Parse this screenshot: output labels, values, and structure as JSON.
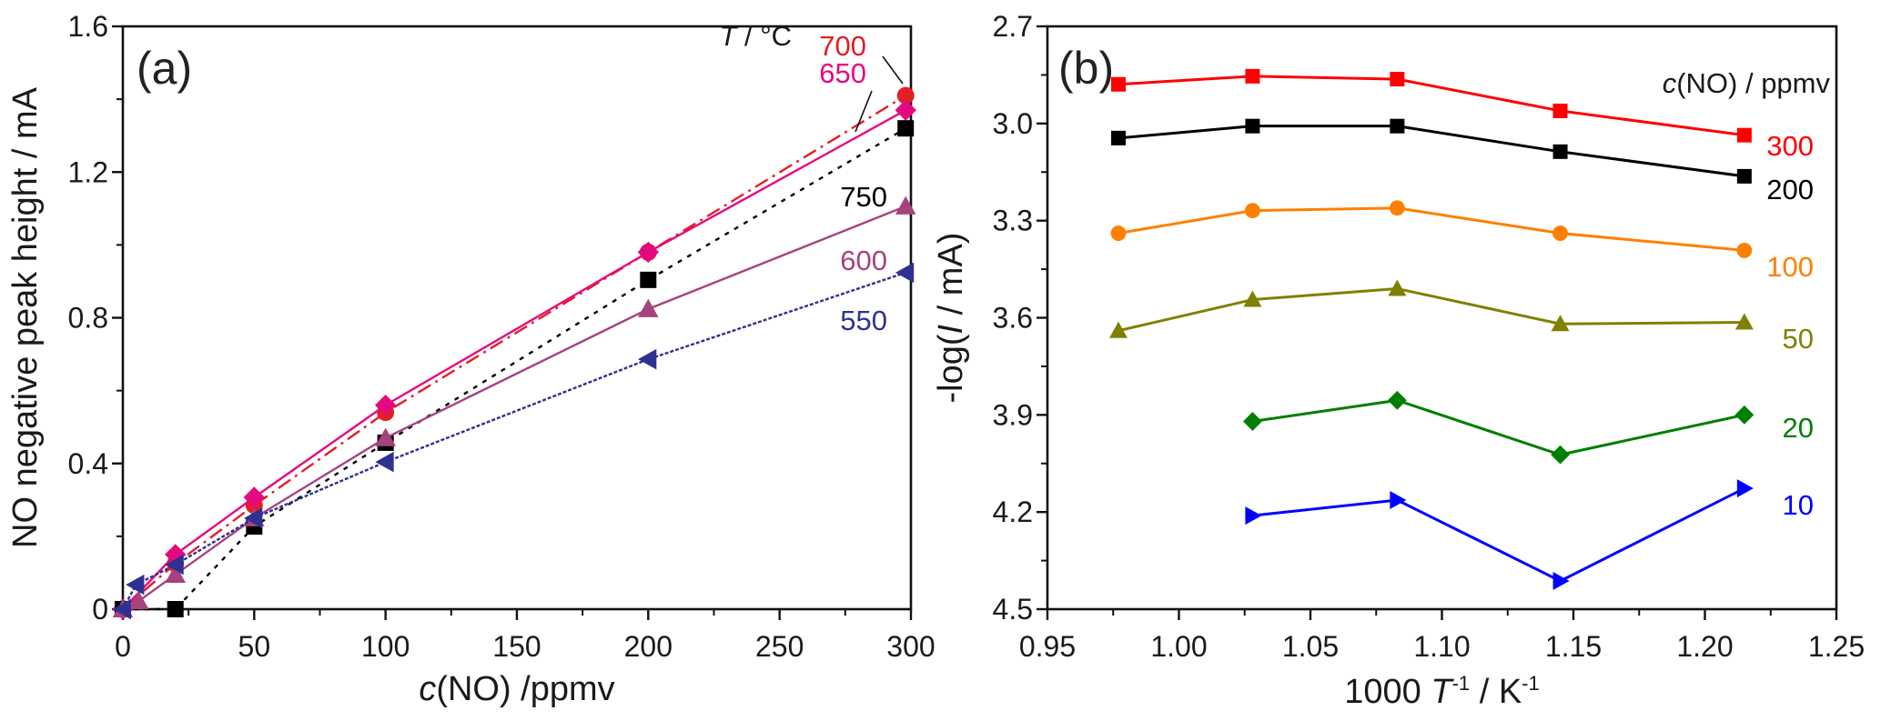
{
  "chart_data": [
    {
      "panel": "(a)",
      "type": "line",
      "xlabel": "c(NO) /ppmv",
      "xlabel_italic_part": "c",
      "xlabel_rest": "(NO) /ppmv",
      "ylabel": "NO negative peak height / mA",
      "xlim": [
        0,
        300
      ],
      "ylim": [
        0,
        1.6
      ],
      "xticks": [
        0,
        50,
        100,
        150,
        200,
        250,
        300
      ],
      "xtick_labels": [
        "0",
        "50",
        "100",
        "150",
        "200",
        "250",
        "300"
      ],
      "yticks": [
        0,
        0.4,
        0.8,
        1.2,
        1.6
      ],
      "ytick_labels": [
        "0",
        "0.4",
        "0.8",
        "1.2",
        "1.6"
      ],
      "x_minor_step": 25,
      "y_minor_step": 0.2,
      "grid": false,
      "legend_title": "T / °C",
      "legend_title_italic_part": "T",
      "legend_title_rest": " / °C",
      "legend_placement": "top-right (labels inline next to lines)",
      "series": [
        {
          "name": "700",
          "color": "#e31e24",
          "marker": "circle",
          "line": "dash-dot",
          "x": [
            0,
            20,
            50,
            100,
            200,
            298
          ],
          "y": [
            0,
            0.125,
            0.285,
            0.54,
            0.98,
            1.41
          ]
        },
        {
          "name": "650",
          "color": "#e5097f",
          "marker": "diamond",
          "line": "solid",
          "x": [
            0,
            20,
            50,
            100,
            200,
            298
          ],
          "y": [
            0,
            0.15,
            0.307,
            0.56,
            0.98,
            1.37
          ]
        },
        {
          "name": "750",
          "color": "#000000",
          "marker": "square",
          "line": "dotted",
          "x": [
            0,
            20,
            50,
            100,
            200,
            298
          ],
          "y": [
            0,
            0.0,
            0.227,
            0.457,
            0.904,
            1.32
          ]
        },
        {
          "name": "600",
          "color": "#a6437f",
          "marker": "triangle-up",
          "line": "solid",
          "x": [
            0,
            6,
            20,
            50,
            100,
            200,
            298
          ],
          "y": [
            0,
            0.022,
            0.095,
            0.25,
            0.47,
            0.824,
            1.106
          ]
        },
        {
          "name": "550",
          "color": "#2e3192",
          "marker": "triangle-left",
          "line": "dashed",
          "x": [
            0,
            5,
            20,
            50,
            100,
            200,
            298
          ],
          "y": [
            0,
            0.067,
            0.122,
            0.25,
            0.404,
            0.686,
            0.924
          ]
        }
      ]
    },
    {
      "panel": "(b)",
      "type": "line",
      "xlabel": "1000 T^-1 / K^-1",
      "ylabel": "-log(I / mA)",
      "xlim": [
        0.95,
        1.25
      ],
      "ylim": [
        4.5,
        2.7
      ],
      "y_inverted": true,
      "xticks": [
        0.95,
        1.0,
        1.05,
        1.1,
        1.15,
        1.2,
        1.25
      ],
      "xtick_labels": [
        "0.95",
        "1.00",
        "1.05",
        "1.10",
        "1.15",
        "1.20",
        "1.25"
      ],
      "yticks": [
        2.7,
        3.0,
        3.3,
        3.6,
        3.9,
        4.2,
        4.5
      ],
      "ytick_labels": [
        "2.7",
        "3.0",
        "3.3",
        "3.6",
        "3.9",
        "4.2",
        "4.5"
      ],
      "x_minor_step": 0.025,
      "y_minor_step": 0.15,
      "grid": false,
      "legend_title": "c(NO) / ppmv",
      "legend_title_italic_part": "c",
      "legend_title_rest": "(NO) / ppmv",
      "legend_placement": "right (labels inline next to lines)",
      "series": [
        {
          "name": "300",
          "color": "#ff0000",
          "marker": "square",
          "x": [
            0.977,
            1.028,
            1.083,
            1.145,
            1.215
          ],
          "y": [
            2.879,
            2.854,
            2.863,
            2.961,
            3.036
          ]
        },
        {
          "name": "200",
          "color": "#000000",
          "marker": "square",
          "x": [
            0.977,
            1.028,
            1.083,
            1.145,
            1.215
          ],
          "y": [
            3.045,
            3.008,
            3.008,
            3.087,
            3.163
          ]
        },
        {
          "name": "100",
          "color": "#ff7f00",
          "marker": "circle",
          "x": [
            0.977,
            1.028,
            1.083,
            1.145,
            1.215
          ],
          "y": [
            3.339,
            3.269,
            3.261,
            3.339,
            3.392
          ]
        },
        {
          "name": "50",
          "color": "#808000",
          "marker": "triangle-up",
          "x": [
            0.977,
            1.028,
            1.083,
            1.145,
            1.215
          ],
          "y": [
            3.64,
            3.544,
            3.51,
            3.619,
            3.614
          ]
        },
        {
          "name": "20",
          "color": "#007f00",
          "marker": "diamond",
          "x": [
            1.028,
            1.083,
            1.145,
            1.215
          ],
          "y": [
            3.92,
            3.855,
            4.023,
            3.9
          ]
        },
        {
          "name": "10",
          "color": "#0000ff",
          "marker": "triangle-right",
          "x": [
            1.028,
            1.083,
            1.145,
            1.215
          ],
          "y": [
            4.211,
            4.163,
            4.413,
            4.127
          ]
        }
      ]
    }
  ]
}
